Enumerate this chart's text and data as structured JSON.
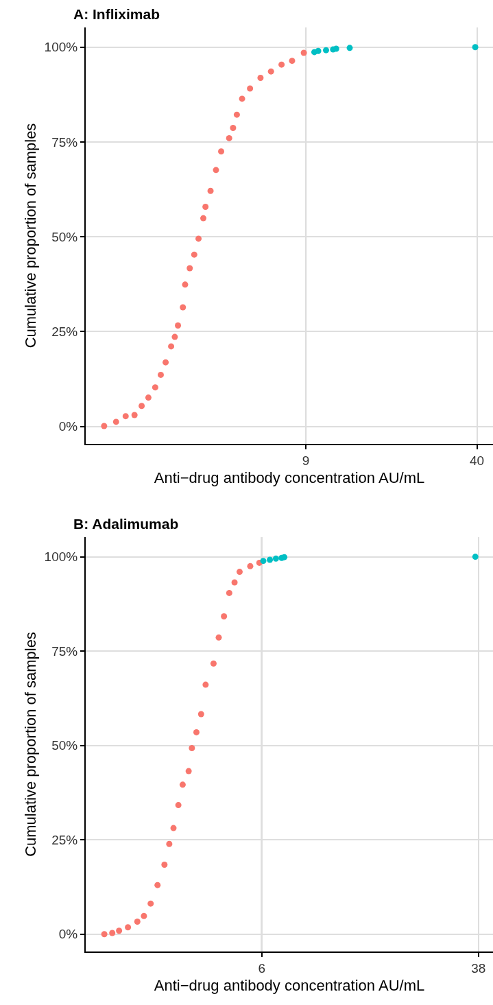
{
  "chart_data": [
    {
      "type": "scatter",
      "title": "A: Infliximab",
      "xlabel": "Anti−drug antibody concentration AU/mL",
      "ylabel": "Cumulative proportion of samples",
      "log": "x",
      "grid": true,
      "marker": "circle",
      "xlim": [
        1.32,
        46
      ],
      "xticks": [
        9,
        40
      ],
      "ylim": [
        -0.046,
        1.052
      ],
      "yticks": [
        {
          "value": 0,
          "label": "0%"
        },
        {
          "value": 0.25,
          "label": "25%"
        },
        {
          "value": 0.5,
          "label": "50%"
        },
        {
          "value": 0.75,
          "label": "75%"
        },
        {
          "value": 1,
          "label": "100%"
        }
      ],
      "ref_lines": [
        {
          "axis": "x",
          "value": 9,
          "color": "#a0a0a0"
        }
      ],
      "series": [
        {
          "color": "#f8766d",
          "x": [
            1.55,
            1.72,
            1.87,
            2.02,
            2.15,
            2.28,
            2.42,
            2.54,
            2.65,
            2.78,
            2.87,
            2.95,
            3.08,
            3.14,
            3.27,
            3.4,
            3.53,
            3.68,
            3.75,
            3.92,
            4.11,
            4.3,
            4.61,
            4.77,
            4.93,
            5.16,
            5.53,
            6.06,
            6.64,
            7.28,
            7.98,
            8.84
          ],
          "values": [
            0.001,
            0.012,
            0.027,
            0.03,
            0.054,
            0.076,
            0.103,
            0.136,
            0.169,
            0.211,
            0.236,
            0.266,
            0.314,
            0.374,
            0.417,
            0.453,
            0.495,
            0.549,
            0.579,
            0.621,
            0.676,
            0.725,
            0.76,
            0.787,
            0.822,
            0.864,
            0.891,
            0.919,
            0.936,
            0.954,
            0.964,
            0.985
          ]
        },
        {
          "color": "#00bfc4",
          "x": [
            9.69,
            10.02,
            10.73,
            11.41,
            11.72,
            13.19,
            39.4
          ],
          "values": [
            0.987,
            0.99,
            0.992,
            0.994,
            0.996,
            0.998,
            1.0
          ]
        }
      ]
    },
    {
      "type": "scatter",
      "title": "B: Adalimumab",
      "xlabel": "Anti−drug antibody concentration AU/mL",
      "ylabel": "Cumulative proportion of samples",
      "log": "x",
      "grid": true,
      "marker": "circle",
      "xlim": [
        1.34,
        43
      ],
      "xticks": [
        6,
        38
      ],
      "ylim": [
        -0.046,
        1.052
      ],
      "yticks": [
        {
          "value": 0,
          "label": "0%"
        },
        {
          "value": 0.25,
          "label": "25%"
        },
        {
          "value": 0.5,
          "label": "50%"
        },
        {
          "value": 0.75,
          "label": "75%"
        },
        {
          "value": 1,
          "label": "100%"
        }
      ],
      "ref_lines": [
        {
          "axis": "x",
          "value": 6,
          "color": "#a0a0a0"
        }
      ],
      "series": [
        {
          "color": "#f8766d",
          "x": [
            1.57,
            1.68,
            1.78,
            1.92,
            2.08,
            2.2,
            2.33,
            2.47,
            2.62,
            2.73,
            2.83,
            2.95,
            3.06,
            3.22,
            3.31,
            3.44,
            3.58,
            3.72,
            3.98,
            4.16,
            4.35,
            4.55,
            4.76,
            4.97,
            5.44,
            5.88
          ],
          "values": [
            0.0,
            0.003,
            0.009,
            0.018,
            0.033,
            0.048,
            0.081,
            0.13,
            0.184,
            0.239,
            0.281,
            0.342,
            0.396,
            0.432,
            0.493,
            0.535,
            0.583,
            0.661,
            0.717,
            0.786,
            0.842,
            0.904,
            0.932,
            0.96,
            0.975,
            0.984
          ]
        },
        {
          "color": "#00bfc4",
          "x": [
            6.08,
            6.43,
            6.77,
            7.11,
            7.27,
            37.0
          ],
          "values": [
            0.989,
            0.992,
            0.995,
            0.997,
            0.999,
            1.0
          ]
        }
      ]
    }
  ]
}
